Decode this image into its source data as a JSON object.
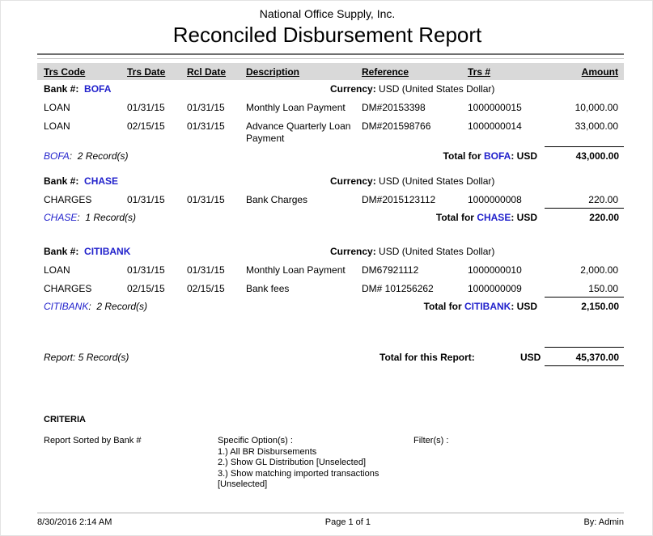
{
  "header": {
    "company": "National Office Supply, Inc.",
    "title": "Reconciled Disbursement Report"
  },
  "columns": [
    "Trs Code",
    "Trs Date",
    "Rcl Date",
    "Description",
    "Reference",
    "Trs #",
    "Amount"
  ],
  "labels": {
    "bank_prefix": "Bank #:",
    "currency_prefix": "Currency:",
    "total_for": "Total for ",
    "total_suffix": ": USD",
    "colon": ":"
  },
  "colors": {
    "bank_blue": "#2222cc",
    "header_bar": "#d9d9d9"
  },
  "banks": [
    {
      "name": "BOFA",
      "currency": "USD (United States Dollar)",
      "records": "2 Record(s)",
      "total_amount": "43,000.00",
      "rows": [
        {
          "trs_code": "LOAN",
          "trs_date": "01/31/15",
          "rcl_date": "01/31/15",
          "description": "Monthly Loan Payment",
          "reference": "DM#20153398",
          "trs_num": "1000000015",
          "amount": "10,000.00"
        },
        {
          "trs_code": "LOAN",
          "trs_date": "02/15/15",
          "rcl_date": "01/31/15",
          "description": "Advance Quarterly Loan Payment",
          "reference": "DM#201598766",
          "trs_num": "1000000014",
          "amount": "33,000.00"
        }
      ]
    },
    {
      "name": "CHASE",
      "currency": "USD (United States Dollar)",
      "records": "1 Record(s)",
      "total_amount": "220.00",
      "rows": [
        {
          "trs_code": "CHARGES",
          "trs_date": "01/31/15",
          "rcl_date": "01/31/15",
          "description": "Bank Charges",
          "reference": "DM#2015123112",
          "trs_num": "1000000008",
          "amount": "220.00"
        }
      ]
    },
    {
      "name": "CITIBANK",
      "currency": "USD (United States Dollar)",
      "records": "2 Record(s)",
      "total_amount": "2,150.00",
      "rows": [
        {
          "trs_code": "LOAN",
          "trs_date": "01/31/15",
          "rcl_date": "01/31/15",
          "description": "Monthly Loan Payment",
          "reference": "DM67921112",
          "trs_num": "1000000010",
          "amount": "2,000.00"
        },
        {
          "trs_code": "CHARGES",
          "trs_date": "02/15/15",
          "rcl_date": "02/15/15",
          "description": "Bank fees",
          "reference": "DM# 101256262",
          "trs_num": "1000000009",
          "amount": "150.00"
        }
      ]
    }
  ],
  "report_total": {
    "records_line": "Report: 5 Record(s)",
    "label": "Total for this Report:",
    "currency": "USD",
    "amount": "45,370.00"
  },
  "criteria": {
    "heading": "CRITERIA",
    "sorted_by": "Report Sorted by Bank #",
    "specific_options_label": "Specific Option(s) :",
    "options": [
      "1.) All BR Disbursements",
      "2.) Show GL Distribution [Unselected]",
      "3.) Show matching imported transactions [Unselected]"
    ],
    "filters_label": "Filter(s) :"
  },
  "footer": {
    "datetime": "8/30/2016 2:14 AM",
    "page": "Page 1 of 1",
    "by": "By: Admin"
  },
  "section_tops": [
    102,
    216,
    303
  ]
}
